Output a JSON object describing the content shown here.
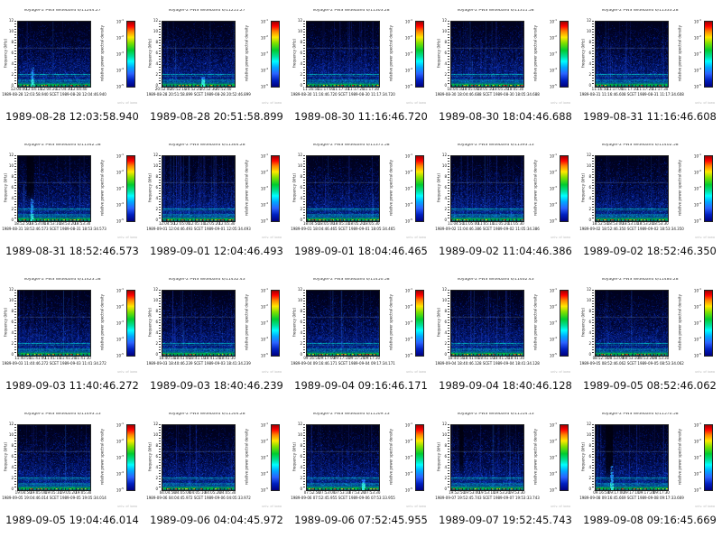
{
  "page": {
    "background": "#ffffff"
  },
  "chart_data": {
    "type": "heatmap",
    "description_title": "Voyager-2 PWS Wideband spectrogram browse grid",
    "xlabel": "time (SCET)",
    "ylabel": "frequency (kHz)",
    "ylim": [
      0,
      12
    ],
    "legend_position": "right-colorbar",
    "plot_common": {
      "ylabel": "frequency (kHz)",
      "yticks": [
        "12",
        "10",
        "8",
        "6",
        "4",
        "2",
        "0"
      ],
      "duration_s": 48,
      "stamp": "univ. of iowa",
      "band_color": "#00c23e",
      "hot_colors": [
        "#ff2400",
        "#ff8800",
        "#ffe000"
      ],
      "hlines": [
        [
          7.2,
          "#7090c0",
          0.38
        ],
        [
          2.35,
          "#00ddcc",
          0.8
        ],
        [
          2.05,
          "#00b0aa",
          0.45
        ],
        [
          1.35,
          "#00c4bb",
          0.55
        ],
        [
          1.1,
          "#00dccc",
          0.7
        ],
        [
          0.8,
          "#00ab96",
          0.5
        ]
      ],
      "colorbar": {
        "label": "relative power spectral density",
        "tick_exponents": [
          "-1",
          "-2",
          "-3",
          "-4",
          "-5"
        ],
        "colors_top_to_bottom": [
          "#a00000",
          "#ff0000 7%",
          "#ff8400 15%",
          "#ffe800 24%",
          "#80e000 33%",
          "#00cc30 44%",
          "#00e0a0 54%",
          "#00ffff 61%",
          "#00aaff 70%",
          "#2a62ff 80%",
          "#0020c0 90%",
          "#000080"
        ]
      }
    },
    "tiles": [
      {
        "title": "Voyager-2 PWS Wideband 6/11244.27",
        "caption": "1989-08-28 12:03:58.940",
        "scet_line": "1989-08-28 12:03:58.940   SCET   1989-08-28 12:04:46.940",
        "xticks": [
          "12:04:00",
          "12:04:10",
          "12:04:20",
          "12:04:30",
          "12:04:40"
        ],
        "features": {
          "v": 0.15,
          "hot": 0.5,
          "blob": [
            0.2,
            3.6
          ],
          "dark": null
        }
      },
      {
        "title": "Voyager-2 PWS Wideband 6/11255.27",
        "caption": "1989-08-28 20:51:58.899",
        "scet_line": "1989-08-28 20:51:58.899   SCET   1989-08-28 20:52:46.899",
        "xticks": [
          "20:52:00",
          "20:52:10",
          "20:52:20",
          "20:52:30",
          "20:52:40"
        ],
        "features": {
          "v": 0.2,
          "hot": 0.45,
          "blob": [
            0.56,
            1.8
          ],
          "dark": null
        }
      },
      {
        "title": "Voyager-2 PWS Wideband 6/11303.28",
        "caption": "1989-08-30 11:16:46.720",
        "scet_line": "1989-08-30 11:16:46.720   SCET   1989-08-30 11:17:34.720",
        "xticks": [
          "11:16:50",
          "11:17:00",
          "11:17:10",
          "11:17:20",
          "11:17:30"
        ],
        "features": {
          "v": 0.5,
          "hot": 0.5,
          "blob": null,
          "dark": null
        }
      },
      {
        "title": "Voyager-2 PWS Wideband 6/11311.58",
        "caption": "1989-08-30 18:04:46.688",
        "scet_line": "1989-08-30 18:04:46.688   SCET   1989-08-30 18:05:34.688",
        "xticks": [
          "18:04:50",
          "18:05:00",
          "18:05:10",
          "18:05:20",
          "18:05:30"
        ],
        "features": {
          "v": 0.55,
          "hot": 0.5,
          "blob": null,
          "dark": null
        }
      },
      {
        "title": "Voyager-2 PWS Wideband 6/11333.28",
        "caption": "1989-08-31 11:16:46.608",
        "scet_line": "1989-08-31 11:16:46.608   SCET   1989-08-31 11:17:34.608",
        "xticks": [
          "11:16:50",
          "11:17:00",
          "11:17:10",
          "11:17:20",
          "11:17:30"
        ],
        "features": {
          "v": 0.45,
          "hot": 0.5,
          "blob": null,
          "dark": null
        }
      },
      {
        "title": "Voyager-2 PWS Wideband 6/11342.58",
        "caption": "1989-08-31 18:52:46.573",
        "scet_line": "1989-08-31 18:52:46.573   SCET   1989-08-31 18:53:34.573",
        "xticks": [
          "18:52:50",
          "18:53:00",
          "18:53:10",
          "18:53:20",
          "18:53:30"
        ],
        "features": {
          "v": 0.3,
          "hot": 0.85,
          "blob": [
            0.19,
            4.2
          ],
          "dark": [
            0.17,
            0.1,
            5.5
          ]
        }
      },
      {
        "title": "Voyager-2 PWS Wideband 6/11364.28",
        "caption": "1989-09-01 12:04:46.493",
        "scet_line": "1989-09-01 12:04:46.493   SCET   1989-09-01 12:05:34.493",
        "xticks": [
          "12:04:50",
          "12:05:00",
          "12:05:10",
          "12:05:20",
          "12:05:30"
        ],
        "features": {
          "v": 0.95,
          "hot": 0.9,
          "blob": null,
          "dark": null
        }
      },
      {
        "title": "Voyager-2 PWS Wideband 6/11371.58",
        "caption": "1989-09-01 18:04:46.465",
        "scet_line": "1989-09-01 18:04:46.465   SCET   1989-09-01 18:05:34.465",
        "xticks": [
          "18:04:50",
          "18:05:00",
          "18:05:10",
          "18:05:20",
          "18:05:30"
        ],
        "features": {
          "v": 0.3,
          "hot": 0.8,
          "blob": null,
          "dark": null
        }
      },
      {
        "title": "Voyager-2 PWS Wideband 6/11393.13",
        "caption": "1989-09-02 11:04:46.386",
        "scet_line": "1989-09-02 11:04:46.386   SCET   1989-09-02 11:05:34.386",
        "xticks": [
          "11:04:50",
          "11:05:00",
          "11:05:10",
          "11:05:20",
          "11:05:30"
        ],
        "features": {
          "v": 0.7,
          "hot": 0.55,
          "blob": null,
          "dark": null
        }
      },
      {
        "title": "Voyager-2 PWS Wideband 6/11402.58",
        "caption": "1989-09-02 18:52:46.350",
        "scet_line": "1989-09-02 18:52:46.350   SCET   1989-09-02 18:53:34.350",
        "xticks": [
          "18:52:50",
          "18:53:00",
          "18:53:10",
          "18:53:20",
          "18:53:30"
        ],
        "features": {
          "v": 0.25,
          "hot": 0.7,
          "blob": null,
          "dark": null
        }
      },
      {
        "title": "Voyager-2 PWS Wideband 6/11423.58",
        "caption": "1989-09-03 11:40:46.272",
        "scet_line": "1989-09-03 11:40:46.272   SCET   1989-09-03 11:41:34.272",
        "xticks": [
          "11:40:50",
          "11:41:00",
          "11:41:10",
          "11:41:20",
          "11:41:30"
        ],
        "features": {
          "v": 0.4,
          "hot": 0.6,
          "blob": null,
          "dark": null
        }
      },
      {
        "title": "Voyager-2 PWS Wideband 6/11432.43",
        "caption": "1989-09-03 18:40:46.239",
        "scet_line": "1989-09-03 18:40:46.239   SCET   1989-09-03 18:41:34.239",
        "xticks": [
          "18:40:50",
          "18:41:00",
          "18:41:10",
          "18:41:20",
          "18:41:30"
        ],
        "features": {
          "v": 0.45,
          "hot": 0.55,
          "blob": null,
          "dark": null
        }
      },
      {
        "title": "Voyager-2 PWS Wideband 6/11450.58",
        "caption": "1989-09-04 09:16:46.171",
        "scet_line": "1989-09-04 09:16:46.171   SCET   1989-09-04 09:17:34.171",
        "xticks": [
          "09:16:50",
          "09:17:00",
          "09:17:10",
          "09:17:20",
          "09:17:30"
        ],
        "features": {
          "v": 0.3,
          "hot": 0.8,
          "blob": null,
          "dark": null
        }
      },
      {
        "title": "Voyager-2 PWS Wideband 6/11462.43",
        "caption": "1989-09-04 18:40:46.128",
        "scet_line": "1989-09-04 18:40:46.128   SCET   1989-09-04 18:41:34.128",
        "xticks": [
          "18:40:50",
          "18:41:00",
          "18:41:10",
          "18:41:20",
          "18:41:30"
        ],
        "features": {
          "v": 0.55,
          "hot": 0.8,
          "blob": null,
          "dark": null
        }
      },
      {
        "title": "Voyager-2 PWS Wideband 6/11480.28",
        "caption": "1989-09-05 08:52:46.062",
        "scet_line": "1989-09-05 08:52:46.062   SCET   1989-09-05 08:53:34.062",
        "xticks": [
          "08:52:50",
          "08:53:00",
          "08:53:10",
          "08:53:20",
          "08:53:30"
        ],
        "features": {
          "v": 0.3,
          "hot": 0.8,
          "blob": null,
          "dark": null
        }
      },
      {
        "title": "Voyager-2 PWS Wideband 6/11493.13",
        "caption": "1989-09-05 19:04:46.014",
        "scet_line": "1989-09-05 19:04:46.014   SCET   1989-09-05 19:05:34.014",
        "xticks": [
          "19:04:50",
          "19:05:00",
          "19:05:10",
          "19:05:20",
          "19:05:30"
        ],
        "features": {
          "v": 0.4,
          "hot": 0.6,
          "blob": null,
          "dark": null
        }
      },
      {
        "title": "Voyager-2 PWS Wideband 6/11504.28",
        "caption": "1989-09-06 04:04:45.972",
        "scet_line": "1989-09-06 04:04:45.972   SCET   1989-09-06 04:05:33.972",
        "xticks": [
          "04:04:50",
          "04:05:00",
          "04:05:10",
          "04:05:20",
          "04:05:30"
        ],
        "features": {
          "v": 0.35,
          "hot": 0.6,
          "blob": null,
          "dark": null
        }
      },
      {
        "title": "Voyager-2 PWS Wideband 6/11509.13",
        "caption": "1989-09-06 07:52:45.955",
        "scet_line": "1989-09-06 07:52:45.955   SCET   1989-09-06 07:53:33.955",
        "xticks": [
          "07:52:50",
          "07:53:00",
          "07:53:10",
          "07:53:20",
          "07:53:30"
        ],
        "features": {
          "v": 0.4,
          "hot": 0.6,
          "blob": [
            0.78,
            2.0
          ],
          "dark": null
        }
      },
      {
        "title": "Voyager-2 PWS Wideband 6/11554.13",
        "caption": "1989-09-07 19:52:45.743",
        "scet_line": "1989-09-07 19:52:45.743   SCET   1989-09-07 19:53:33.743",
        "xticks": [
          "19:52:50",
          "19:53:00",
          "19:53:10",
          "19:53:20",
          "19:53:30"
        ],
        "features": {
          "v": 0.5,
          "hot": 0.8,
          "blob": null,
          "dark": [
            0.14,
            0.06,
            5.0
          ]
        }
      },
      {
        "title": "Voyager-2 PWS Wideband 6/11570.58",
        "caption": "1989-09-08 09:16:45.669",
        "scet_line": "1989-09-08 09:16:45.669   SCET   1989-09-08 09:17:33.669",
        "xticks": [
          "09:16:50",
          "09:17:00",
          "09:17:10",
          "09:17:20",
          "09:17:30"
        ],
        "features": {
          "v": 0.3,
          "hot": 0.8,
          "blob": [
            0.22,
            4.5
          ],
          "dark": [
            0.19,
            0.1,
            4.0
          ]
        }
      }
    ]
  }
}
